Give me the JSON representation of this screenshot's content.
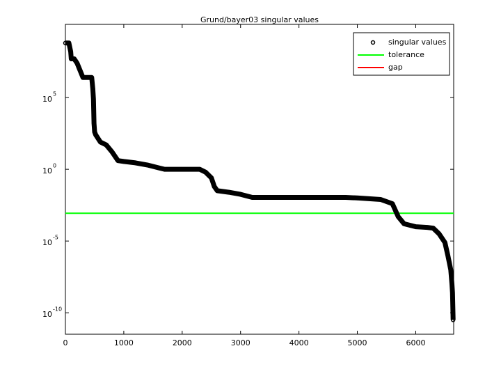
{
  "chart_data": {
    "type": "scatter",
    "title": "Grund/bayer03 singular values",
    "y_scale": "log",
    "xlim": [
      0,
      6650
    ],
    "ylim": [
      3.2e-12,
      12600000000.0
    ],
    "xticks": [
      0,
      1000,
      2000,
      3000,
      4000,
      5000,
      6000
    ],
    "yticks": [
      {
        "value": 1e-10,
        "label": "10",
        "power": "-10"
      },
      {
        "value": 1e-05,
        "label": "10",
        "power": "-5"
      },
      {
        "value": 1,
        "label": "10",
        "power": "0"
      },
      {
        "value": 100000,
        "label": "10",
        "power": "5"
      }
    ],
    "series": [
      {
        "name": "singular values",
        "color": "#000000",
        "x": [
          0,
          60,
          90,
          100,
          150,
          200,
          250,
          300,
          450,
          470,
          480,
          490,
          500,
          520,
          600,
          700,
          800,
          900,
          1000,
          1200,
          1400,
          1600,
          1700,
          2000,
          2300,
          2400,
          2500,
          2550,
          2600,
          2800,
          3000,
          3200,
          4000,
          4800,
          5000,
          5400,
          5600,
          5700,
          5800,
          6000,
          6200,
          6300,
          6400,
          6500,
          6550,
          6600,
          6620,
          6630,
          6640
        ],
        "values": [
          630000000.0,
          630000000.0,
          160000000.0,
          50000000.0,
          50000000.0,
          25000000.0,
          7900000.0,
          2500000.0,
          2500000.0,
          400000.0,
          79000.0,
          1600,
          400,
          250,
          79,
          50,
          16,
          4,
          3.5,
          2.8,
          2,
          1.26,
          1,
          1,
          1,
          0.63,
          0.25,
          0.063,
          0.032,
          0.025,
          0.018,
          0.011,
          0.011,
          0.011,
          0.01,
          0.0079,
          0.004,
          0.0005,
          0.00016,
          0.0001,
          8.9e-05,
          7.9e-05,
          3.2e-05,
          7.9e-06,
          1e-06,
          1e-07,
          1e-08,
          2.5e-09,
          3.2e-11
        ]
      }
    ],
    "lines": [
      {
        "name": "tolerance",
        "color": "#00ff00",
        "value": 0.00087
      },
      {
        "name": "gap",
        "color": "#ff0000"
      }
    ]
  }
}
